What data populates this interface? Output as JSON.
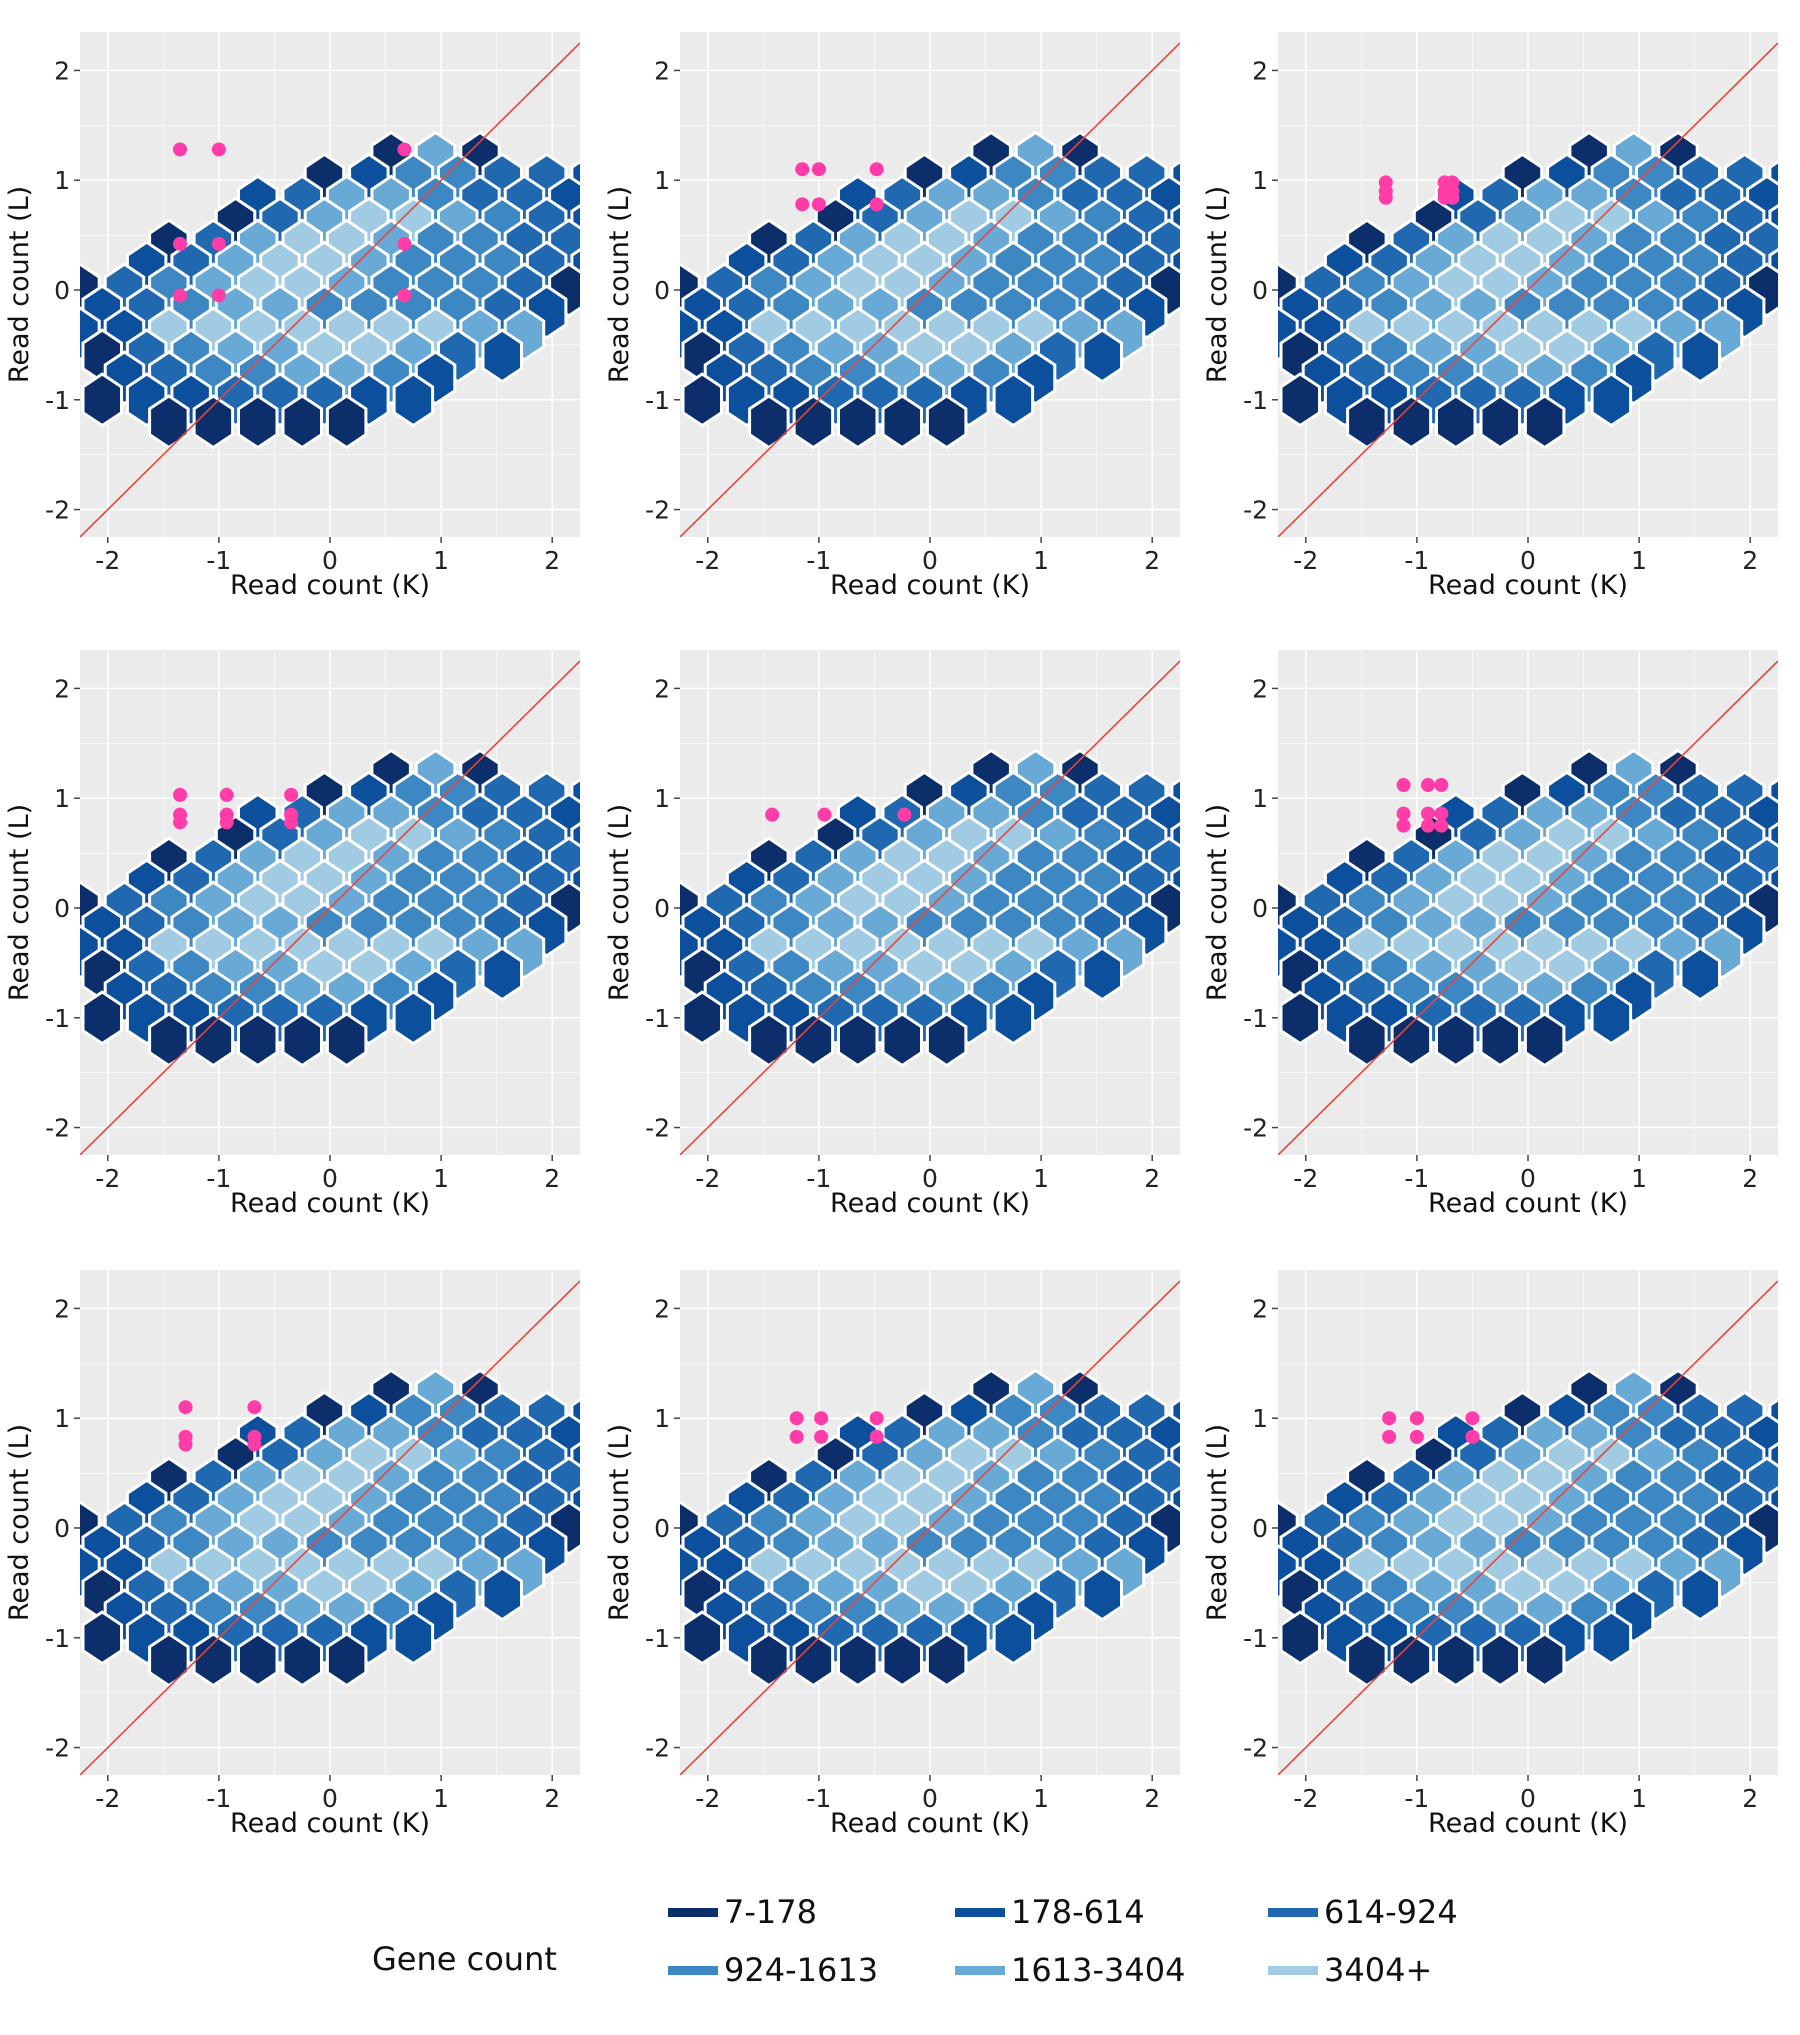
{
  "chart_data": {
    "type": "hexbin-scatter",
    "layout": "3x3 grid",
    "xlabel": "Read count (K)",
    "ylabel": "Read count (L)",
    "xlim": [
      -2.25,
      2.25
    ],
    "ylim": [
      -2.25,
      2.35
    ],
    "xticks": [
      -2,
      -1,
      0,
      1,
      2
    ],
    "yticks": [
      -2,
      -1,
      0,
      1,
      2
    ],
    "grid": true,
    "reference_line": {
      "slope": 1,
      "intercept": 0,
      "color": "#e8453c"
    },
    "hexagons": [
      {
        "q": -3,
        "r": 6,
        "c": 0
      },
      {
        "q": -2,
        "r": 6,
        "c": 4
      },
      {
        "q": -1,
        "r": 6,
        "c": 0
      },
      {
        "q": -4,
        "r": 5,
        "c": 0
      },
      {
        "q": -3,
        "r": 5,
        "c": 1
      },
      {
        "q": -2,
        "r": 5,
        "c": 3
      },
      {
        "q": -1,
        "r": 5,
        "c": 3
      },
      {
        "q": 0,
        "r": 5,
        "c": 2
      },
      {
        "q": 1,
        "r": 5,
        "c": 2
      },
      {
        "q": 2,
        "r": 5,
        "c": 1
      },
      {
        "q": -5,
        "r": 4,
        "c": 1
      },
      {
        "q": -4,
        "r": 4,
        "c": 2
      },
      {
        "q": -3,
        "r": 4,
        "c": 4
      },
      {
        "q": -2,
        "r": 4,
        "c": 4
      },
      {
        "q": -1,
        "r": 4,
        "c": 3
      },
      {
        "q": 0,
        "r": 4,
        "c": 2
      },
      {
        "q": 1,
        "r": 4,
        "c": 2
      },
      {
        "q": 2,
        "r": 4,
        "c": 1
      },
      {
        "q": 3,
        "r": 4,
        "c": 0
      },
      {
        "q": -5,
        "r": 3,
        "c": 0
      },
      {
        "q": -4,
        "r": 3,
        "c": 2
      },
      {
        "q": -3,
        "r": 3,
        "c": 4
      },
      {
        "q": -2,
        "r": 3,
        "c": 5
      },
      {
        "q": -1,
        "r": 3,
        "c": 5
      },
      {
        "q": 0,
        "r": 3,
        "c": 4
      },
      {
        "q": 1,
        "r": 3,
        "c": 3
      },
      {
        "q": 2,
        "r": 3,
        "c": 2
      },
      {
        "q": 3,
        "r": 3,
        "c": 1
      },
      {
        "q": 4,
        "r": 3,
        "c": 0
      },
      {
        "q": -6,
        "r": 2,
        "c": 0
      },
      {
        "q": -5,
        "r": 2,
        "c": 2
      },
      {
        "q": -4,
        "r": 2,
        "c": 4
      },
      {
        "q": -3,
        "r": 2,
        "c": 5
      },
      {
        "q": -2,
        "r": 2,
        "c": 5
      },
      {
        "q": -1,
        "r": 2,
        "c": 4
      },
      {
        "q": 0,
        "r": 2,
        "c": 3
      },
      {
        "q": 1,
        "r": 2,
        "c": 3
      },
      {
        "q": 2,
        "r": 2,
        "c": 2
      },
      {
        "q": 3,
        "r": 2,
        "c": 2
      },
      {
        "q": 4,
        "r": 2,
        "c": 1
      },
      {
        "q": -6,
        "r": 1,
        "c": 1
      },
      {
        "q": -5,
        "r": 1,
        "c": 2
      },
      {
        "q": -4,
        "r": 1,
        "c": 4
      },
      {
        "q": -3,
        "r": 1,
        "c": 5
      },
      {
        "q": -2,
        "r": 1,
        "c": 5
      },
      {
        "q": -1,
        "r": 1,
        "c": 4
      },
      {
        "q": 0,
        "r": 1,
        "c": 3
      },
      {
        "q": 1,
        "r": 1,
        "c": 3
      },
      {
        "q": 2,
        "r": 1,
        "c": 3
      },
      {
        "q": 3,
        "r": 1,
        "c": 2
      },
      {
        "q": 4,
        "r": 1,
        "c": 1
      },
      {
        "q": -7,
        "r": 0,
        "c": 0
      },
      {
        "q": -6,
        "r": 0,
        "c": 2
      },
      {
        "q": -5,
        "r": 0,
        "c": 3
      },
      {
        "q": -4,
        "r": 0,
        "c": 4
      },
      {
        "q": -3,
        "r": 0,
        "c": 5
      },
      {
        "q": -2,
        "r": 0,
        "c": 5
      },
      {
        "q": -1,
        "r": 0,
        "c": 4
      },
      {
        "q": 0,
        "r": 0,
        "c": 3
      },
      {
        "q": 1,
        "r": 0,
        "c": 3
      },
      {
        "q": 2,
        "r": 0,
        "c": 3
      },
      {
        "q": 3,
        "r": 0,
        "c": 2
      },
      {
        "q": 4,
        "r": 0,
        "c": 0
      },
      {
        "q": -6,
        "r": -1,
        "c": 1
      },
      {
        "q": -5,
        "r": -1,
        "c": 2
      },
      {
        "q": -4,
        "r": -1,
        "c": 3
      },
      {
        "q": -3,
        "r": -1,
        "c": 4
      },
      {
        "q": -2,
        "r": -1,
        "c": 4
      },
      {
        "q": -1,
        "r": -1,
        "c": 3
      },
      {
        "q": 0,
        "r": -1,
        "c": 3
      },
      {
        "q": 1,
        "r": -1,
        "c": 3
      },
      {
        "q": 2,
        "r": -1,
        "c": 3
      },
      {
        "q": 3,
        "r": -1,
        "c": 2
      },
      {
        "q": 4,
        "r": -1,
        "c": 1
      },
      {
        "q": -6,
        "r": -2,
        "c": 1
      },
      {
        "q": -5,
        "r": -2,
        "c": 1
      },
      {
        "q": -4,
        "r": -2,
        "c": 5
      },
      {
        "q": -3,
        "r": -2,
        "c": 5
      },
      {
        "q": -2,
        "r": -2,
        "c": 5
      },
      {
        "q": -1,
        "r": -2,
        "c": 5
      },
      {
        "q": 0,
        "r": -2,
        "c": 5
      },
      {
        "q": 1,
        "r": -2,
        "c": 5
      },
      {
        "q": 2,
        "r": -2,
        "c": 5
      },
      {
        "q": 3,
        "r": -2,
        "c": 4
      },
      {
        "q": 4,
        "r": -2,
        "c": 4
      },
      {
        "q": -5,
        "r": -3,
        "c": 0
      },
      {
        "q": -4,
        "r": -3,
        "c": 2
      },
      {
        "q": -3,
        "r": -3,
        "c": 3
      },
      {
        "q": -2,
        "r": -3,
        "c": 4
      },
      {
        "q": -1,
        "r": -3,
        "c": 4
      },
      {
        "q": 0,
        "r": -3,
        "c": 5
      },
      {
        "q": 1,
        "r": -3,
        "c": 5
      },
      {
        "q": 2,
        "r": -3,
        "c": 4
      },
      {
        "q": 3,
        "r": -3,
        "c": 2
      },
      {
        "q": 4,
        "r": -3,
        "c": 1
      },
      {
        "q": -4,
        "r": -4,
        "c": 1
      },
      {
        "q": -3,
        "r": -4,
        "c": 2
      },
      {
        "q": -2,
        "r": -4,
        "c": 3
      },
      {
        "q": -1,
        "r": -4,
        "c": 3
      },
      {
        "q": 0,
        "r": -4,
        "c": 4
      },
      {
        "q": 1,
        "r": -4,
        "c": 4
      },
      {
        "q": 2,
        "r": -4,
        "c": 3
      },
      {
        "q": 3,
        "r": -4,
        "c": 1
      },
      {
        "q": -4,
        "r": -5,
        "c": 0
      },
      {
        "q": -3,
        "r": -5,
        "c": 1
      },
      {
        "q": -2,
        "r": -5,
        "c": 1
      },
      {
        "q": -1,
        "r": -5,
        "c": 2
      },
      {
        "q": 0,
        "r": -5,
        "c": 2
      },
      {
        "q": 1,
        "r": -5,
        "c": 2
      },
      {
        "q": 2,
        "r": -5,
        "c": 1
      },
      {
        "q": 3,
        "r": -5,
        "c": 1
      },
      {
        "q": -2,
        "r": -6,
        "c": 0
      },
      {
        "q": -1,
        "r": -6,
        "c": 0
      },
      {
        "q": 0,
        "r": -6,
        "c": 0
      },
      {
        "q": 1,
        "r": -6,
        "c": 0
      },
      {
        "q": 2,
        "r": -6,
        "c": 0
      }
    ],
    "panels": [
      {
        "points": [
          {
            "x": -1.35,
            "y": 1.28
          },
          {
            "x": -1.0,
            "y": 1.28
          },
          {
            "x": 0.67,
            "y": 1.28
          },
          {
            "x": -1.35,
            "y": 0.42
          },
          {
            "x": -1.0,
            "y": 0.42
          },
          {
            "x": 0.67,
            "y": 0.42
          },
          {
            "x": -1.35,
            "y": -0.05
          },
          {
            "x": -1.0,
            "y": -0.05
          },
          {
            "x": 0.67,
            "y": -0.05
          }
        ]
      },
      {
        "points": [
          {
            "x": -1.15,
            "y": 1.1
          },
          {
            "x": -1.0,
            "y": 1.1
          },
          {
            "x": -0.48,
            "y": 1.1
          },
          {
            "x": -1.15,
            "y": 0.78
          },
          {
            "x": -1.0,
            "y": 0.78
          },
          {
            "x": -0.48,
            "y": 0.78
          }
        ]
      },
      {
        "points": [
          {
            "x": -1.28,
            "y": 0.98
          },
          {
            "x": -1.28,
            "y": 0.9
          },
          {
            "x": -1.28,
            "y": 0.84
          },
          {
            "x": -0.75,
            "y": 0.98
          },
          {
            "x": -0.68,
            "y": 0.98
          },
          {
            "x": -0.75,
            "y": 0.9
          },
          {
            "x": -0.68,
            "y": 0.9
          },
          {
            "x": -0.75,
            "y": 0.84
          },
          {
            "x": -0.68,
            "y": 0.84
          }
        ]
      },
      {
        "points": [
          {
            "x": -1.35,
            "y": 1.03
          },
          {
            "x": -1.35,
            "y": 0.85
          },
          {
            "x": -1.35,
            "y": 0.78
          },
          {
            "x": -0.93,
            "y": 1.03
          },
          {
            "x": -0.93,
            "y": 0.85
          },
          {
            "x": -0.93,
            "y": 0.78
          },
          {
            "x": -0.35,
            "y": 1.03
          },
          {
            "x": -0.35,
            "y": 0.85
          },
          {
            "x": -0.35,
            "y": 0.78
          }
        ]
      },
      {
        "points": [
          {
            "x": -1.42,
            "y": 0.85
          },
          {
            "x": -0.95,
            "y": 0.85
          },
          {
            "x": -0.23,
            "y": 0.85
          }
        ]
      },
      {
        "points": [
          {
            "x": -1.12,
            "y": 1.12
          },
          {
            "x": -0.9,
            "y": 1.12
          },
          {
            "x": -0.78,
            "y": 1.12
          },
          {
            "x": -1.12,
            "y": 0.86
          },
          {
            "x": -0.9,
            "y": 0.86
          },
          {
            "x": -0.78,
            "y": 0.86
          },
          {
            "x": -1.12,
            "y": 0.75
          },
          {
            "x": -0.9,
            "y": 0.75
          },
          {
            "x": -0.78,
            "y": 0.75
          }
        ]
      },
      {
        "points": [
          {
            "x": -1.3,
            "y": 1.1
          },
          {
            "x": -1.3,
            "y": 0.83
          },
          {
            "x": -1.3,
            "y": 0.76
          },
          {
            "x": -0.68,
            "y": 1.1
          },
          {
            "x": -0.68,
            "y": 0.83
          },
          {
            "x": -0.68,
            "y": 0.76
          }
        ]
      },
      {
        "points": [
          {
            "x": -1.2,
            "y": 1.0
          },
          {
            "x": -0.98,
            "y": 1.0
          },
          {
            "x": -0.48,
            "y": 1.0
          },
          {
            "x": -1.2,
            "y": 0.83
          },
          {
            "x": -0.98,
            "y": 0.83
          },
          {
            "x": -0.48,
            "y": 0.83
          }
        ]
      },
      {
        "points": [
          {
            "x": -1.25,
            "y": 1.0
          },
          {
            "x": -1.0,
            "y": 1.0
          },
          {
            "x": -0.5,
            "y": 1.0
          },
          {
            "x": -1.25,
            "y": 0.83
          },
          {
            "x": -1.0,
            "y": 0.83
          },
          {
            "x": -0.5,
            "y": 0.83
          }
        ]
      }
    ]
  },
  "legend": {
    "title": "Gene count",
    "items": [
      {
        "label": "7-178",
        "color": "#0c2f6b"
      },
      {
        "label": "178-614",
        "color": "#0c4f9c"
      },
      {
        "label": "614-924",
        "color": "#2068b0"
      },
      {
        "label": "924-1613",
        "color": "#3d87c2"
      },
      {
        "label": "1613-3404",
        "color": "#69a9d6"
      },
      {
        "label": "3404+",
        "color": "#a1cbe2"
      }
    ]
  },
  "colors": {
    "panel_background": "#ebebeb",
    "grid": "#ffffff",
    "hex_edge": "#ffffff",
    "point": "#ff3ca8",
    "line": "#e8453c"
  }
}
